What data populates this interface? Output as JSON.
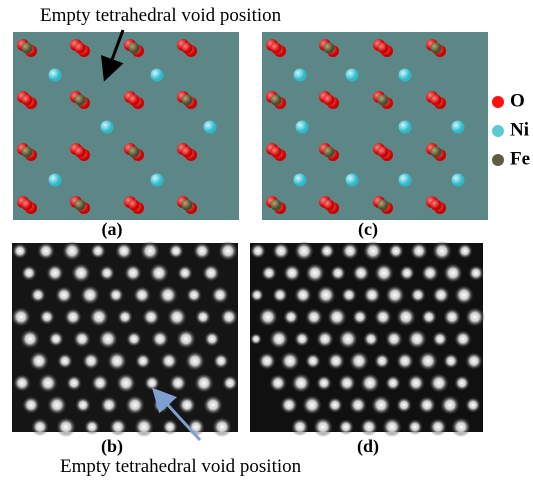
{
  "annotations": {
    "top": "Empty tetrahedral void position",
    "bottom": "Empty tetrahedral void position"
  },
  "panels": [
    "(a)",
    "(b)",
    "(c)",
    "(d)"
  ],
  "legend": [
    {
      "label": "O",
      "color": "#ff1010"
    },
    {
      "label": "Ni",
      "color": "#5cc8d2"
    },
    {
      "label": "Fe",
      "color": "#5d5b45"
    }
  ]
}
